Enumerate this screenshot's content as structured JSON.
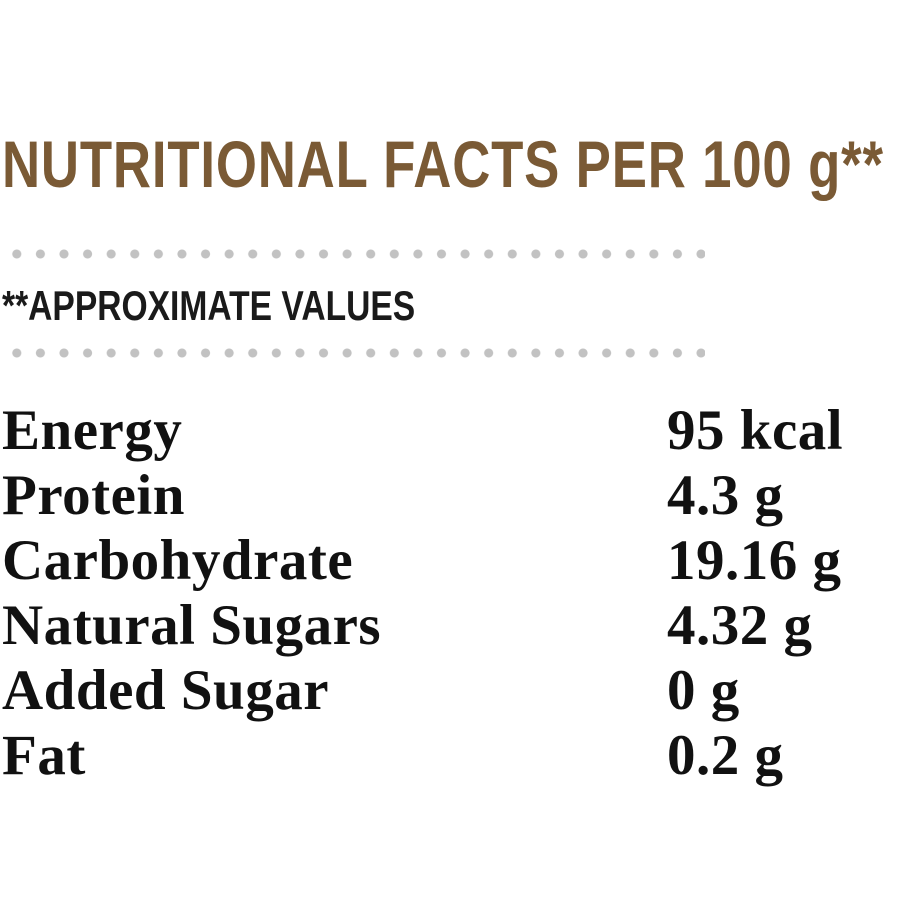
{
  "title": "NUTRITIONAL FACTS PER 100 g**",
  "subtitle": "**APPROXIMATE VALUES",
  "facts": [
    {
      "nutrient": "Energy",
      "amount": "95 kcal"
    },
    {
      "nutrient": "Protein",
      "amount": "4.3 g"
    },
    {
      "nutrient": "Carbohydrate",
      "amount": "19.16 g"
    },
    {
      "nutrient": "Natural Sugars",
      "amount": "4.32 g"
    },
    {
      "nutrient": "Added Sugar",
      "amount": "0 g"
    },
    {
      "nutrient": "Fat",
      "amount": "0.2 g"
    }
  ],
  "colors": {
    "title": "#7a5a35",
    "text": "#111111",
    "dots": "#c2c2c2"
  }
}
